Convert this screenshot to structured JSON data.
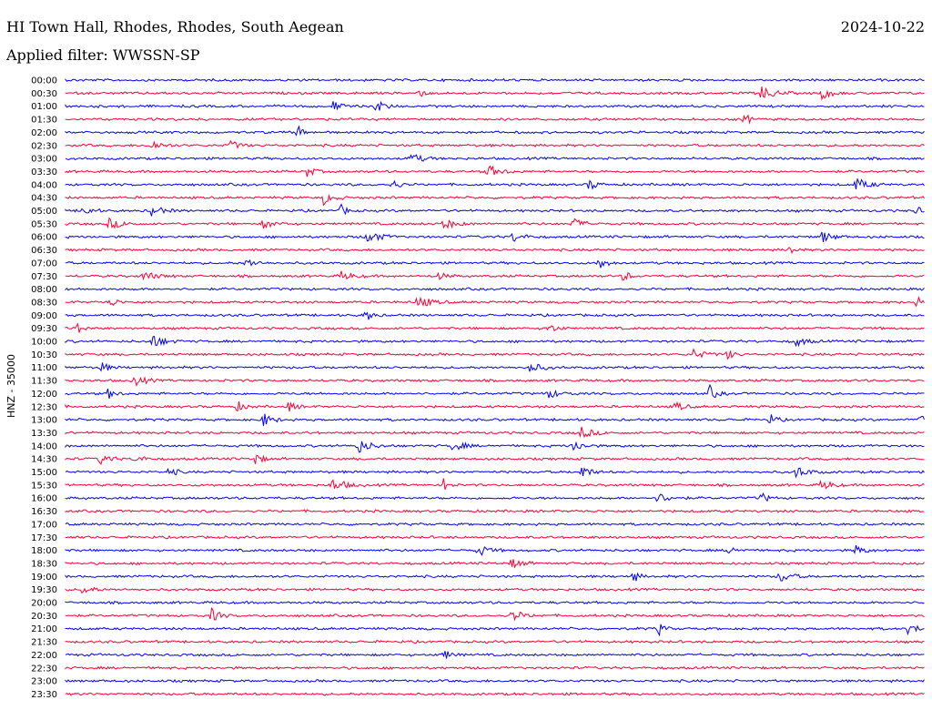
{
  "header": {
    "station_title": "HI Town Hall, Rhodes, Rhodes, South Aegean",
    "date": "2024-10-22",
    "filter_text": "Applied filter: WWSSN-SP"
  },
  "chart_data": {
    "type": "line",
    "title": "",
    "ylabel": "HNZ - 35000",
    "xlabel": "",
    "grid": false,
    "series_colors": [
      "#0000ff",
      "#ff0033"
    ],
    "rows": [
      {
        "time": "00:00",
        "events": []
      },
      {
        "time": "00:30",
        "events": [
          0.41,
          0.81,
          0.88
        ]
      },
      {
        "time": "01:00",
        "events": [
          0.31,
          0.36
        ]
      },
      {
        "time": "01:30",
        "events": [
          0.79
        ]
      },
      {
        "time": "02:00",
        "events": [
          0.27
        ]
      },
      {
        "time": "02:30",
        "events": [
          0.1,
          0.19
        ]
      },
      {
        "time": "03:00",
        "events": [
          0.4
        ]
      },
      {
        "time": "03:30",
        "events": [
          0.28,
          0.49
        ]
      },
      {
        "time": "04:00",
        "events": [
          0.38,
          0.61,
          0.92
        ]
      },
      {
        "time": "04:30",
        "events": [
          0.3
        ]
      },
      {
        "time": "05:00",
        "events": [
          0.02,
          0.1,
          0.32,
          0.99
        ]
      },
      {
        "time": "05:30",
        "events": [
          0.05,
          0.23,
          0.44,
          0.59
        ]
      },
      {
        "time": "06:00",
        "events": [
          0.35,
          0.52,
          0.88
        ]
      },
      {
        "time": "06:30",
        "events": [
          0.84
        ]
      },
      {
        "time": "07:00",
        "events": [
          0.21,
          0.62
        ]
      },
      {
        "time": "07:30",
        "events": [
          0.09,
          0.32,
          0.43,
          0.65
        ]
      },
      {
        "time": "08:00",
        "events": []
      },
      {
        "time": "08:30",
        "events": [
          0.05,
          0.41,
          0.99
        ]
      },
      {
        "time": "09:00",
        "events": [
          0.35
        ]
      },
      {
        "time": "09:30",
        "events": [
          0.01,
          0.56
        ]
      },
      {
        "time": "10:00",
        "events": [
          0.1,
          0.85
        ]
      },
      {
        "time": "10:30",
        "events": [
          0.73,
          0.77
        ]
      },
      {
        "time": "11:00",
        "events": [
          0.04,
          0.54
        ]
      },
      {
        "time": "11:30",
        "events": [
          0.08
        ]
      },
      {
        "time": "12:00",
        "events": [
          0.05,
          0.56,
          0.75
        ]
      },
      {
        "time": "12:30",
        "events": [
          0.2,
          0.26,
          0.71
        ]
      },
      {
        "time": "13:00",
        "events": [
          0.23,
          0.82,
          0.99
        ]
      },
      {
        "time": "13:30",
        "events": [
          0.6
        ]
      },
      {
        "time": "14:00",
        "events": [
          0.34,
          0.45,
          0.59
        ]
      },
      {
        "time": "14:30",
        "events": [
          0.04,
          0.08,
          0.22
        ]
      },
      {
        "time": "15:00",
        "events": [
          0.12,
          0.6,
          0.85
        ]
      },
      {
        "time": "15:30",
        "events": [
          0.31,
          0.44,
          0.88
        ]
      },
      {
        "time": "16:00",
        "events": [
          0.69,
          0.81
        ]
      },
      {
        "time": "16:30",
        "events": []
      },
      {
        "time": "17:00",
        "events": []
      },
      {
        "time": "17:30",
        "events": []
      },
      {
        "time": "18:00",
        "events": [
          0.48,
          0.77,
          0.92
        ]
      },
      {
        "time": "18:30",
        "events": [
          0.52
        ]
      },
      {
        "time": "19:00",
        "events": [
          0.66,
          0.83
        ]
      },
      {
        "time": "19:30",
        "events": [
          0.02
        ]
      },
      {
        "time": "20:00",
        "events": []
      },
      {
        "time": "20:30",
        "events": [
          0.17,
          0.52
        ]
      },
      {
        "time": "21:00",
        "events": [
          0.69,
          0.98
        ]
      },
      {
        "time": "21:30",
        "events": []
      },
      {
        "time": "22:00",
        "events": [
          0.44
        ]
      },
      {
        "time": "22:30",
        "events": []
      },
      {
        "time": "23:00",
        "events": []
      },
      {
        "time": "23:30",
        "events": []
      }
    ]
  }
}
